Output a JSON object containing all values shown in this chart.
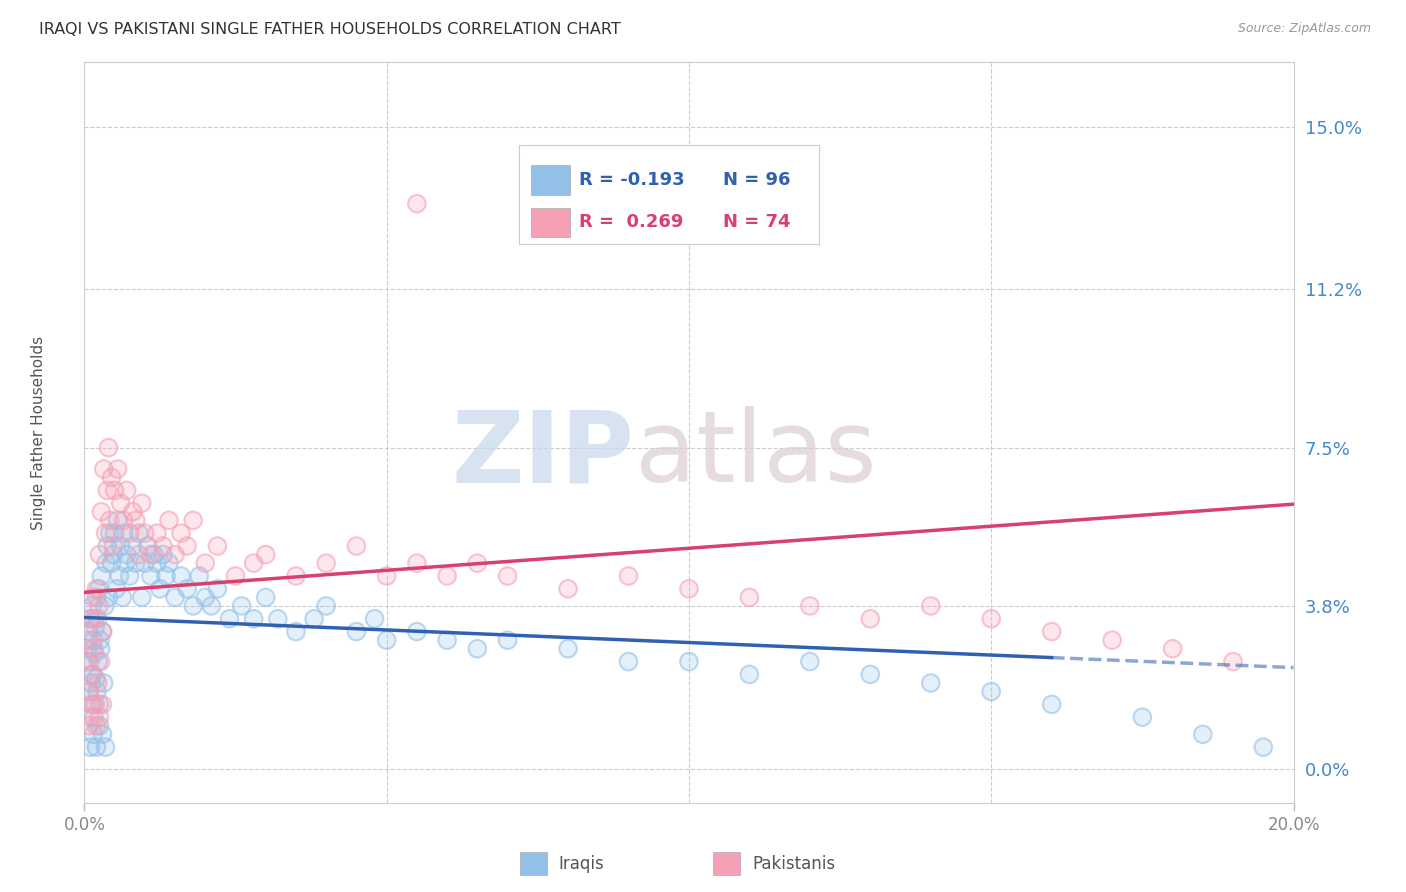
{
  "title": "IRAQI VS PAKISTANI SINGLE FATHER HOUSEHOLDS CORRELATION CHART",
  "source": "Source: ZipAtlas.com",
  "ylabel": "Single Father Households",
  "ytick_values": [
    0.0,
    3.8,
    7.5,
    11.2,
    15.0
  ],
  "xlim": [
    0.0,
    20.0
  ],
  "ylim": [
    -0.8,
    16.5
  ],
  "iraqi_R": -0.193,
  "iraqi_N": 96,
  "pakistani_R": 0.269,
  "pakistani_N": 74,
  "iraqi_color": "#92C0E8",
  "pakistani_color": "#F5A0B5",
  "iraqi_line_color": "#3060B0",
  "pakistani_line_color": "#D84070",
  "background_color": "#FFFFFF",
  "iraqi_x": [
    0.05,
    0.07,
    0.08,
    0.09,
    0.1,
    0.11,
    0.12,
    0.13,
    0.14,
    0.15,
    0.16,
    0.17,
    0.18,
    0.19,
    0.2,
    0.21,
    0.22,
    0.23,
    0.24,
    0.25,
    0.26,
    0.27,
    0.28,
    0.3,
    0.32,
    0.34,
    0.36,
    0.38,
    0.4,
    0.42,
    0.45,
    0.48,
    0.5,
    0.53,
    0.55,
    0.58,
    0.6,
    0.63,
    0.65,
    0.68,
    0.7,
    0.75,
    0.8,
    0.85,
    0.9,
    0.95,
    1.0,
    1.05,
    1.1,
    1.15,
    1.2,
    1.25,
    1.3,
    1.35,
    1.4,
    1.5,
    1.6,
    1.7,
    1.8,
    1.9,
    2.0,
    2.1,
    2.2,
    2.4,
    2.6,
    2.8,
    3.0,
    3.2,
    3.5,
    3.8,
    4.0,
    4.5,
    4.8,
    5.0,
    5.5,
    6.0,
    6.5,
    7.0,
    8.0,
    9.0,
    10.0,
    11.0,
    12.0,
    13.0,
    14.0,
    15.0,
    16.0,
    17.5,
    18.5,
    19.5,
    0.1,
    0.15,
    0.2,
    0.25,
    0.3,
    0.35
  ],
  "iraqi_y": [
    2.8,
    3.2,
    1.8,
    2.5,
    3.5,
    2.0,
    1.5,
    3.8,
    2.2,
    3.0,
    1.2,
    2.7,
    3.3,
    2.1,
    4.0,
    1.8,
    3.5,
    2.5,
    4.2,
    1.5,
    3.0,
    2.8,
    4.5,
    3.2,
    2.0,
    3.8,
    4.8,
    5.2,
    4.0,
    5.5,
    4.8,
    5.0,
    5.5,
    4.2,
    5.8,
    4.5,
    5.2,
    4.0,
    5.5,
    4.8,
    5.0,
    4.5,
    5.2,
    4.8,
    5.5,
    4.0,
    4.8,
    5.2,
    4.5,
    5.0,
    4.8,
    4.2,
    5.0,
    4.5,
    4.8,
    4.0,
    4.5,
    4.2,
    3.8,
    4.5,
    4.0,
    3.8,
    4.2,
    3.5,
    3.8,
    3.5,
    4.0,
    3.5,
    3.2,
    3.5,
    3.8,
    3.2,
    3.5,
    3.0,
    3.2,
    3.0,
    2.8,
    3.0,
    2.8,
    2.5,
    2.5,
    2.2,
    2.5,
    2.2,
    2.0,
    1.8,
    1.5,
    1.2,
    0.8,
    0.5,
    0.5,
    0.8,
    0.5,
    1.0,
    0.8,
    0.5
  ],
  "pakistani_x": [
    0.05,
    0.07,
    0.08,
    0.1,
    0.12,
    0.14,
    0.15,
    0.17,
    0.18,
    0.2,
    0.22,
    0.24,
    0.25,
    0.27,
    0.28,
    0.3,
    0.32,
    0.35,
    0.38,
    0.4,
    0.42,
    0.45,
    0.48,
    0.5,
    0.55,
    0.6,
    0.65,
    0.7,
    0.75,
    0.8,
    0.85,
    0.9,
    0.95,
    1.0,
    1.1,
    1.2,
    1.3,
    1.4,
    1.5,
    1.6,
    1.7,
    1.8,
    2.0,
    2.2,
    2.5,
    2.8,
    3.0,
    3.5,
    4.0,
    4.5,
    5.0,
    5.5,
    6.0,
    6.5,
    7.0,
    8.0,
    9.0,
    10.0,
    11.0,
    12.0,
    13.0,
    14.0,
    15.0,
    16.0,
    17.0,
    18.0,
    19.0,
    5.5,
    0.08,
    0.1,
    0.15,
    0.2,
    0.25,
    0.3
  ],
  "pakistani_y": [
    2.5,
    3.0,
    1.8,
    3.5,
    2.2,
    4.0,
    2.8,
    3.5,
    1.5,
    4.2,
    2.0,
    3.8,
    5.0,
    2.5,
    6.0,
    3.2,
    7.0,
    5.5,
    6.5,
    7.5,
    5.8,
    6.8,
    5.2,
    6.5,
    7.0,
    6.2,
    5.8,
    6.5,
    5.5,
    6.0,
    5.8,
    5.0,
    6.2,
    5.5,
    5.0,
    5.5,
    5.2,
    5.8,
    5.0,
    5.5,
    5.2,
    5.8,
    4.8,
    5.2,
    4.5,
    4.8,
    5.0,
    4.5,
    4.8,
    5.2,
    4.5,
    4.8,
    4.5,
    4.8,
    4.5,
    4.2,
    4.5,
    4.2,
    4.0,
    3.8,
    3.5,
    3.8,
    3.5,
    3.2,
    3.0,
    2.8,
    2.5,
    13.2,
    1.0,
    1.2,
    1.5,
    1.0,
    1.2,
    1.5
  ]
}
